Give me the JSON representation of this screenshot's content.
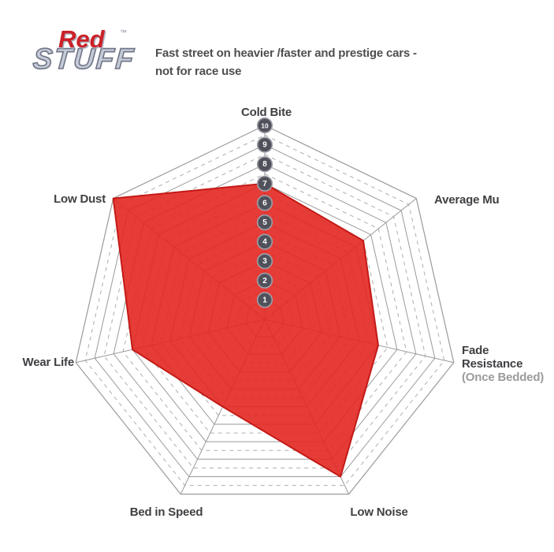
{
  "logo": {
    "red_text": "Red",
    "stuff_text": "STUFF",
    "trademark": "™"
  },
  "subtitle": {
    "line1": "Fast street on heavier /faster and prestige cars -",
    "line2": "not for race use"
  },
  "chart_data": {
    "type": "radar",
    "title": "",
    "categories": [
      "Cold Bite",
      "Average Mu",
      "Fade Resistance (Once Bedded)",
      "Low Noise",
      "Bed in Speed",
      "Wear Life",
      "Low Dust"
    ],
    "values": [
      7,
      6.5,
      6,
      9,
      5,
      7,
      10
    ],
    "axis_labels": [
      {
        "name": "cold-bite",
        "lines": [
          "Cold Bite"
        ],
        "muted_line_index": -1
      },
      {
        "name": "average-mu",
        "lines": [
          "Average Mu"
        ],
        "muted_line_index": -1
      },
      {
        "name": "fade-resistance",
        "lines": [
          "Fade",
          "Resistance",
          "(Once Bedded)"
        ],
        "muted_line_index": 2
      },
      {
        "name": "low-noise",
        "lines": [
          "Low Noise"
        ],
        "muted_line_index": -1
      },
      {
        "name": "bed-in-speed",
        "lines": [
          "Bed in Speed"
        ],
        "muted_line_index": -1
      },
      {
        "name": "wear-life",
        "lines": [
          "Wear Life"
        ],
        "muted_line_index": -1
      },
      {
        "name": "low-dust",
        "lines": [
          "Low Dust"
        ],
        "muted_line_index": -1
      }
    ],
    "scale": {
      "min": 0,
      "max": 10,
      "solid_ring_step": 1,
      "dashed_ring_step": 0.5,
      "tick_labels": [
        "1",
        "2",
        "3",
        "4",
        "5",
        "6",
        "7",
        "8",
        "9",
        "10"
      ]
    },
    "layout_hints": {
      "start_axis": "top",
      "direction": "clockwise",
      "grid": "heptagon web, solid rings at integers, dashed rings at halves",
      "legend": "none"
    },
    "colors": {
      "fill": "#e32722",
      "fill_stroke": "#c41a16",
      "grid": "#9a9a9a",
      "grid_dashed": "#adadad",
      "badge_fill": "#50515b",
      "badge_stroke": "#9fa0a8",
      "badge_text": "#ffffff",
      "label": "#3f4043",
      "label_muted": "#9b9b9d"
    }
  }
}
